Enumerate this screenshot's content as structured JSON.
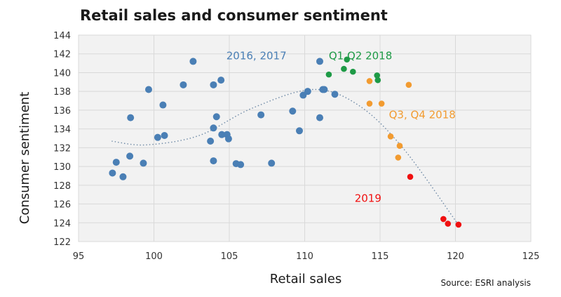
{
  "chart_data": {
    "type": "scatter",
    "title": "Retail sales and consumer sentiment",
    "xlabel": "Retail sales",
    "ylabel": "Consumer sentiment",
    "source": "Source:  ESRI analysis",
    "xlim": [
      95,
      125
    ],
    "ylim": [
      122,
      144
    ],
    "xticks": [
      95,
      100,
      105,
      110,
      115,
      120,
      125
    ],
    "yticks": [
      122,
      124,
      126,
      128,
      130,
      132,
      134,
      136,
      138,
      140,
      142,
      144
    ],
    "grid": true,
    "series": [
      {
        "name": "2016, 2017",
        "color": "#4a7fb5",
        "points": [
          [
            97.25,
            129.3
          ],
          [
            97.5,
            130.45
          ],
          [
            97.95,
            128.9
          ],
          [
            98.4,
            131.1
          ],
          [
            98.45,
            135.2
          ],
          [
            99.3,
            130.35
          ],
          [
            99.65,
            138.2
          ],
          [
            100.25,
            133.1
          ],
          [
            100.6,
            136.55
          ],
          [
            100.7,
            133.3
          ],
          [
            101.95,
            138.7
          ],
          [
            102.6,
            141.2
          ],
          [
            103.75,
            132.7
          ],
          [
            103.95,
            134.1
          ],
          [
            103.95,
            130.6
          ],
          [
            103.95,
            138.7
          ],
          [
            104.15,
            135.3
          ],
          [
            104.45,
            139.2
          ],
          [
            104.5,
            133.4
          ],
          [
            104.85,
            133.4
          ],
          [
            104.95,
            132.95
          ],
          [
            105.45,
            130.3
          ],
          [
            105.75,
            130.2
          ],
          [
            107.1,
            135.5
          ],
          [
            107.8,
            130.35
          ],
          [
            109.2,
            135.9
          ],
          [
            109.65,
            133.8
          ],
          [
            109.9,
            137.6
          ],
          [
            110.2,
            138.0
          ],
          [
            111.0,
            141.2
          ],
          [
            111.0,
            135.2
          ],
          [
            111.2,
            138.2
          ],
          [
            111.3,
            138.2
          ],
          [
            112.0,
            137.7
          ]
        ]
      },
      {
        "name": "Q1,Q2 2018",
        "color": "#1e9a46",
        "points": [
          [
            111.6,
            139.8
          ],
          [
            112.6,
            140.4
          ],
          [
            112.8,
            141.4
          ],
          [
            113.2,
            140.1
          ],
          [
            114.8,
            139.7
          ],
          [
            114.85,
            139.2
          ]
        ]
      },
      {
        "name": "Q3, Q4 2018",
        "color": "#f29b30",
        "points": [
          [
            114.3,
            139.1
          ],
          [
            114.3,
            136.7
          ],
          [
            115.1,
            136.7
          ],
          [
            116.9,
            138.7
          ],
          [
            115.7,
            133.2
          ],
          [
            116.3,
            132.2
          ],
          [
            116.2,
            130.95
          ]
        ]
      },
      {
        "name": "2019",
        "color": "#f01010",
        "points": [
          [
            117.0,
            128.9
          ],
          [
            119.2,
            124.4
          ],
          [
            119.5,
            123.9
          ],
          [
            120.2,
            123.8
          ]
        ]
      }
    ],
    "annotations": [
      {
        "text": "2016, 2017",
        "x": 106.8,
        "y": 141.8,
        "color": "#4a7fb5"
      },
      {
        "text": "Q1,Q2 2018",
        "x": 113.7,
        "y": 141.8,
        "color": "#1e9a46"
      },
      {
        "text": "Q3, Q4 2018",
        "x": 117.8,
        "y": 135.5,
        "color": "#f29b30"
      },
      {
        "text": "2019",
        "x": 114.2,
        "y": 126.6,
        "color": "#f01010"
      }
    ],
    "trendline": {
      "type": "polynomial",
      "style": "dotted",
      "color": "#6f8aa6",
      "points": [
        [
          97.2,
          132.7
        ],
        [
          99.5,
          132.3
        ],
        [
          103,
          133.3
        ],
        [
          106.5,
          136.2
        ],
        [
          110.5,
          138.2
        ],
        [
          113.5,
          136.6
        ],
        [
          116.5,
          132.0
        ],
        [
          120.1,
          124.0
        ]
      ]
    }
  }
}
